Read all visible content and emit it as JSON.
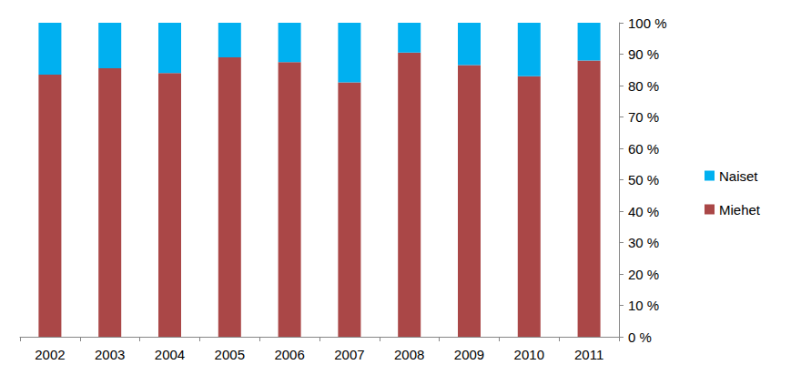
{
  "chart_data": {
    "type": "bar",
    "stacked": true,
    "categories": [
      "2002",
      "2003",
      "2004",
      "2005",
      "2006",
      "2007",
      "2008",
      "2009",
      "2010",
      "2011"
    ],
    "series": [
      {
        "name": "Miehet",
        "color": "#aa4747",
        "values": [
          83.5,
          85.5,
          84,
          89,
          87.5,
          81,
          90.5,
          86.5,
          83,
          88
        ]
      },
      {
        "name": "Naiset",
        "color": "#00b0f0",
        "values": [
          16.5,
          14.5,
          16,
          11,
          12.5,
          19,
          9.5,
          13.5,
          17,
          12
        ]
      }
    ],
    "ylim": [
      0,
      100
    ],
    "yticks": [
      {
        "value": 0,
        "label": "0 %"
      },
      {
        "value": 10,
        "label": "10 %"
      },
      {
        "value": 20,
        "label": "20 %"
      },
      {
        "value": 30,
        "label": "30 %"
      },
      {
        "value": 40,
        "label": "40 %"
      },
      {
        "value": 50,
        "label": "50 %"
      },
      {
        "value": 60,
        "label": "60 %"
      },
      {
        "value": 70,
        "label": "70 %"
      },
      {
        "value": 80,
        "label": "80 %"
      },
      {
        "value": 90,
        "label": "90 %"
      },
      {
        "value": 100,
        "label": "100 %"
      }
    ],
    "grid": false,
    "legend": "right"
  }
}
